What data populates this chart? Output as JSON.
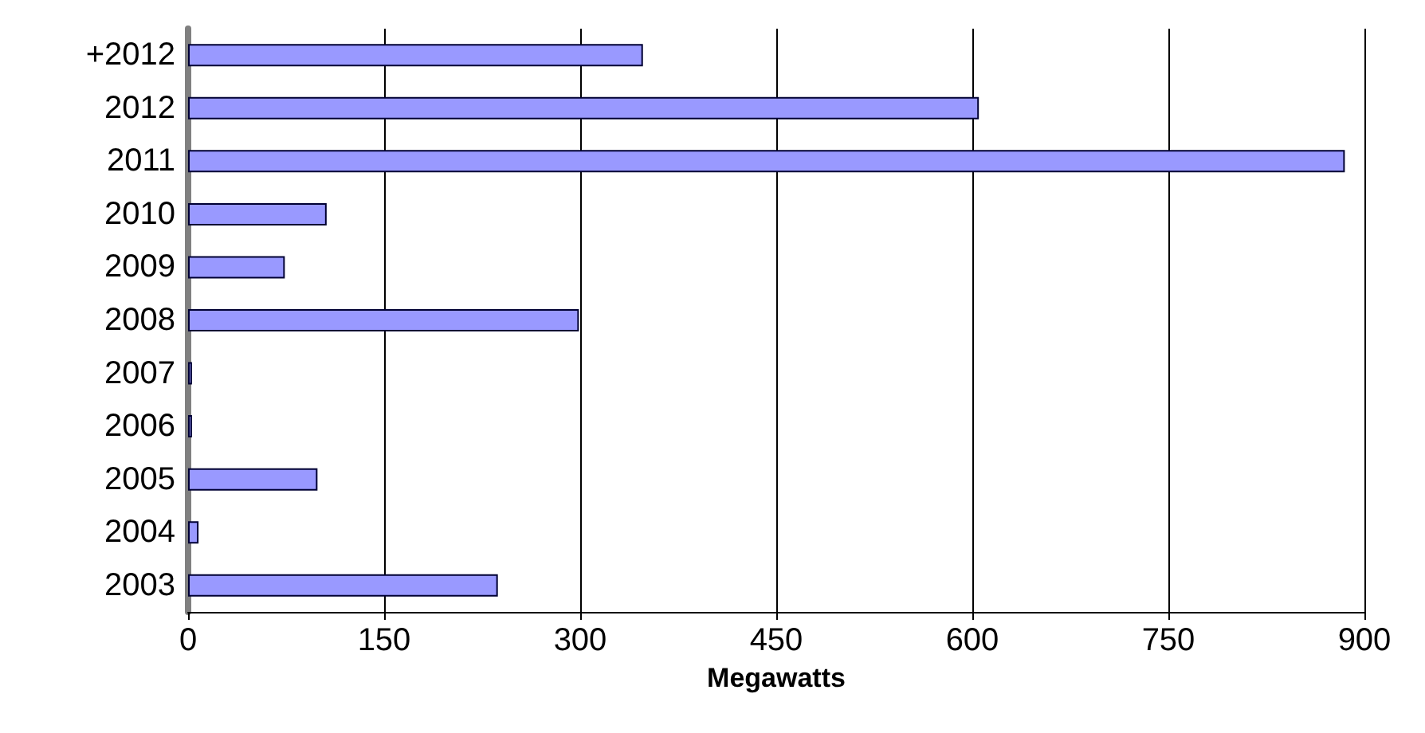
{
  "chart_data": {
    "type": "bar",
    "orientation": "horizontal",
    "xlabel": "Megawatts",
    "categories": [
      "+2012",
      "2012",
      "2011",
      "2010",
      "2009",
      "2008",
      "2007",
      "2006",
      "2005",
      "2004",
      "2003"
    ],
    "values": [
      348,
      605,
      885,
      106,
      74,
      299,
      3,
      3,
      99,
      8,
      237
    ],
    "color": "#9999ff",
    "xlim": [
      0,
      900
    ],
    "xticks": [
      0,
      150,
      300,
      450,
      600,
      750,
      900
    ],
    "grid": "x"
  }
}
